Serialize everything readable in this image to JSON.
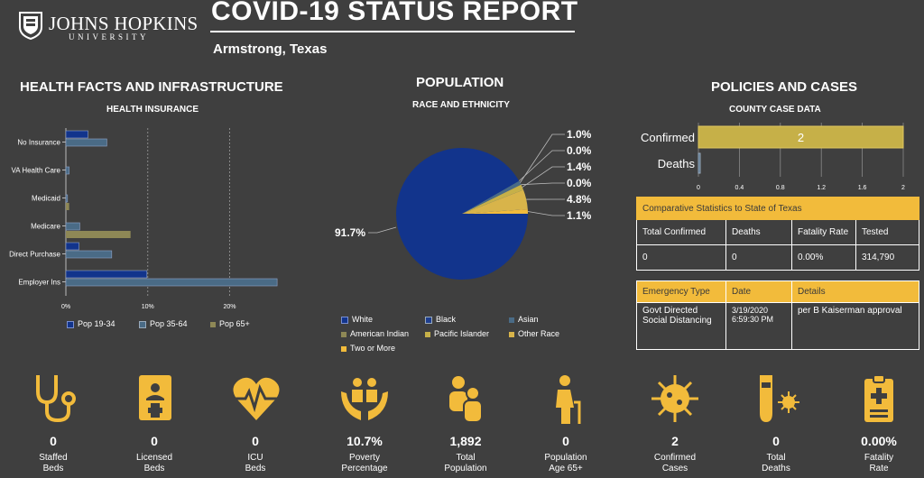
{
  "header": {
    "logo_line1": "JOHNS HOPKINS",
    "logo_line2": "UNIVERSITY",
    "title": "COVID-19 STATUS REPORT",
    "location": "Armstrong,  Texas"
  },
  "sections": {
    "health": "HEALTH FACTS AND INFRASTRUCTURE",
    "health_sub": "HEALTH INSURANCE",
    "population": "POPULATION",
    "population_sub": "RACE AND ETHNICITY",
    "policies": "POLICIES AND CASES",
    "policies_sub": "COUNTY CASE DATA"
  },
  "colors": {
    "navy": "#12348c",
    "steel": "#4a6b86",
    "olive": "#8e8856",
    "gold": "#f2bb3b",
    "khaki": "#c6b048"
  },
  "chart_data": [
    {
      "type": "bar",
      "orientation": "horizontal",
      "categories": [
        "No Insurance",
        "VA Health Care",
        "Medicaid",
        "Medicare",
        "Direct Purchase",
        "Employer Ins"
      ],
      "series": [
        {
          "name": "Pop 19-34",
          "values": [
            2.7,
            0,
            0,
            0,
            1.6,
            9.9
          ]
        },
        {
          "name": "Pop 35-64",
          "values": [
            5.0,
            0.4,
            0.2,
            1.7,
            5.6,
            25.8
          ]
        },
        {
          "name": "Pop 65+",
          "values": [
            0,
            0,
            0.4,
            7.9,
            0,
            0
          ]
        }
      ],
      "xticks": [
        "0%",
        "10%",
        "20%"
      ],
      "xlim": [
        0,
        27
      ],
      "legend": "bottom"
    },
    {
      "type": "pie",
      "slices": [
        {
          "name": "White",
          "value": 91.7,
          "label": "91.7%"
        },
        {
          "name": "Black",
          "value": 0.0,
          "label": "0.0%"
        },
        {
          "name": "Asian",
          "value": 1.0,
          "label": "1.0%"
        },
        {
          "name": "American Indian",
          "value": 0.0,
          "label": "0.0%"
        },
        {
          "name": "Pacific Islander",
          "value": 1.4,
          "label": "1.4%"
        },
        {
          "name": "Other Race",
          "value": 4.8,
          "label": "4.8%"
        },
        {
          "name": "Two or More",
          "value": 1.1,
          "label": "1.1%"
        }
      ],
      "legend": "bottom"
    },
    {
      "type": "bar",
      "orientation": "horizontal",
      "categories": [
        "Confirmed",
        "Deaths"
      ],
      "values": [
        2,
        0
      ],
      "data_labels": [
        "2",
        ""
      ],
      "xticks": [
        "0",
        "0.4",
        "0.8",
        "1.2",
        "1.6",
        "2"
      ],
      "xlim": [
        0,
        2
      ]
    }
  ],
  "comparative": {
    "title": "Comparative Statistics to State of Texas",
    "headers": [
      "Total Confirmed",
      "Deaths",
      "Fatality Rate",
      "Tested"
    ],
    "values": [
      "0",
      "0",
      "0.00%",
      "314,790"
    ]
  },
  "emergency": {
    "headers": [
      "Emergency Type",
      "Date",
      "Details"
    ],
    "type": "Govt Directed Social Distancing",
    "date_line1": "3/19/2020",
    "date_line2": "6:59:30 PM",
    "details": "per B Kaiserman approval"
  },
  "stats": [
    {
      "icon": "stethoscope-icon",
      "value": "0",
      "label1": "Staffed",
      "label2": "Beds"
    },
    {
      "icon": "medical-card-icon",
      "value": "0",
      "label1": "Licensed",
      "label2": "Beds"
    },
    {
      "icon": "heartbeat-icon",
      "value": "0",
      "label1": "ICU",
      "label2": "Beds"
    },
    {
      "icon": "hands-people-icon",
      "value": "10.7%",
      "label1": "Poverty",
      "label2": "Percentage"
    },
    {
      "icon": "population-icon",
      "value": "1,892",
      "label1": "Total",
      "label2": "Population"
    },
    {
      "icon": "elderly-icon",
      "value": "0",
      "label1": "Population",
      "label2": "Age 65+"
    },
    {
      "icon": "virus-icon",
      "value": "2",
      "label1": "Confirmed",
      "label2": "Cases"
    },
    {
      "icon": "test-tube-virus-icon",
      "value": "0",
      "label1": "Total",
      "label2": "Deaths"
    },
    {
      "icon": "clipboard-icon",
      "value": "0.00%",
      "label1": "Fatality",
      "label2": "Rate"
    }
  ]
}
